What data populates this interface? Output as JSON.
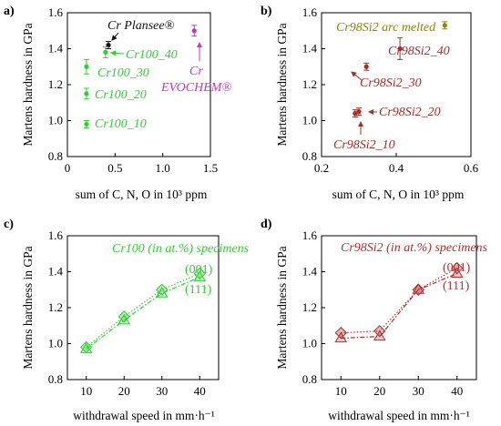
{
  "chart_data": [
    {
      "type": "scatter",
      "panel_label": "a)",
      "xlabel": "sum of C, N, O in 10³ ppm",
      "ylabel": "Martens hardness in GPa",
      "xlim": [
        0,
        1.5
      ],
      "ylim": [
        0.8,
        1.6
      ],
      "x_ticks": [
        "0",
        "0.5",
        "1.0",
        "1.5"
      ],
      "y_ticks": [
        "0.8",
        "1.0",
        "1.2",
        "1.4",
        "1.6"
      ],
      "points": [
        {
          "label": "Cr Plansee®",
          "x": 0.43,
          "y": 1.42,
          "err": 0.02,
          "color": "#111111"
        },
        {
          "label": "Cr100_40",
          "x": 0.4,
          "y": 1.38,
          "err": 0.03,
          "color": "#33cc33"
        },
        {
          "label": "Cr100_30",
          "x": 0.2,
          "y": 1.3,
          "err": 0.04,
          "color": "#33cc33"
        },
        {
          "label": "Cr100_20",
          "x": 0.2,
          "y": 1.15,
          "err": 0.03,
          "color": "#33cc33"
        },
        {
          "label": "Cr100_10",
          "x": 0.2,
          "y": 0.98,
          "err": 0.02,
          "color": "#33cc33"
        },
        {
          "label": "Cr EVOCHEM®",
          "x": 1.33,
          "y": 1.5,
          "err": 0.03,
          "color": "#cc33cc"
        }
      ],
      "annotations": {
        "plansee": "Cr Plansee®",
        "cr100_40": "Cr100_40",
        "cr100_30": "Cr100_30",
        "cr100_20": "Cr100_20",
        "cr100_10": "Cr100_10",
        "evochem_line1": "Cr",
        "evochem_line2": "EVOCHEM®"
      }
    },
    {
      "type": "scatter",
      "panel_label": "b)",
      "xlabel": "sum of C, N, O in 10³ ppm",
      "ylabel": "Martens hardness in GPa",
      "xlim": [
        0.2,
        0.6
      ],
      "ylim": [
        0.8,
        1.6
      ],
      "x_ticks": [
        "0.2",
        "0.4",
        "0.6"
      ],
      "y_ticks": [
        "0.8",
        "1.0",
        "1.2",
        "1.4",
        "1.6"
      ],
      "points": [
        {
          "label": "Cr98Si2 arc melted",
          "x": 0.53,
          "y": 1.53,
          "err": 0.02,
          "color": "#8a8a00"
        },
        {
          "label": "Cr98Si2_40",
          "x": 0.41,
          "y": 1.4,
          "err": 0.06,
          "color": "#a0302a"
        },
        {
          "label": "Cr98Si2_30",
          "x": 0.32,
          "y": 1.3,
          "err": 0.02,
          "color": "#a0302a"
        },
        {
          "label": "Cr98Si2_20",
          "x": 0.3,
          "y": 1.05,
          "err": 0.02,
          "color": "#a0302a"
        },
        {
          "label": "Cr98Si2_10",
          "x": 0.29,
          "y": 1.04,
          "err": 0.02,
          "color": "#a0302a"
        }
      ],
      "annotations": {
        "arc": "Cr98Si2 arc melted",
        "s40": "Cr98Si2_40",
        "s30": "Cr98Si2_30",
        "s20": "Cr98Si2_20",
        "s10": "Cr98Si2_10"
      }
    },
    {
      "type": "line",
      "panel_label": "c)",
      "xlabel": "withdrawal speed in mm·h⁻¹",
      "ylabel": "Martens hardness in GPa",
      "xlim": [
        5,
        45
      ],
      "ylim": [
        0.8,
        1.6
      ],
      "x_ticks": [
        "10",
        "20",
        "30",
        "40"
      ],
      "y_ticks": [
        "0.8",
        "1.0",
        "1.2",
        "1.4",
        "1.6"
      ],
      "x": [
        10,
        20,
        30,
        40
      ],
      "series": [
        {
          "name": "(001)",
          "values": [
            0.98,
            1.15,
            1.3,
            1.39
          ],
          "style": "dotted"
        },
        {
          "name": "(111)",
          "values": [
            0.97,
            1.13,
            1.28,
            1.37
          ],
          "style": "dash-dot"
        }
      ],
      "color": "#33cc33",
      "annotation": "Cr100 (in at.%) specimens"
    },
    {
      "type": "line",
      "panel_label": "d)",
      "xlabel": "withdrawal speed in mm·h⁻¹",
      "ylabel": "Martens hardness in GPa",
      "xlim": [
        5,
        45
      ],
      "ylim": [
        0.8,
        1.6
      ],
      "x_ticks": [
        "10",
        "20",
        "30",
        "40"
      ],
      "y_ticks": [
        "0.8",
        "1.0",
        "1.2",
        "1.4",
        "1.6"
      ],
      "x": [
        10,
        20,
        30,
        40
      ],
      "series": [
        {
          "name": "(001)",
          "values": [
            1.06,
            1.07,
            1.3,
            1.42
          ],
          "style": "dotted"
        },
        {
          "name": "(111)",
          "values": [
            1.03,
            1.04,
            1.3,
            1.39
          ],
          "style": "dash-dot"
        }
      ],
      "color": "#b03030",
      "annotation": "Cr98Si2 (in at.%) specimens"
    }
  ]
}
